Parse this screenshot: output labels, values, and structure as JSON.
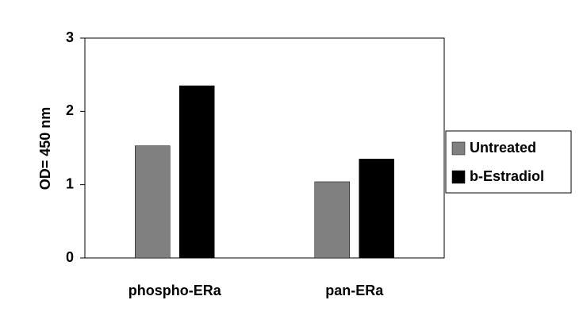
{
  "chart_data": {
    "type": "bar",
    "categories": [
      "phospho-ERa",
      "pan-ERa"
    ],
    "series": [
      {
        "name": "Untreated",
        "color": "#808080",
        "values": [
          1.53,
          1.04
        ]
      },
      {
        "name": "b-Estradiol",
        "color": "#000000",
        "values": [
          2.35,
          1.35
        ]
      }
    ],
    "y_label": "OD= 450 nm",
    "ylim": [
      0,
      3
    ],
    "yticks": [
      0,
      1,
      2,
      3
    ],
    "grid": false,
    "legend": "right"
  }
}
